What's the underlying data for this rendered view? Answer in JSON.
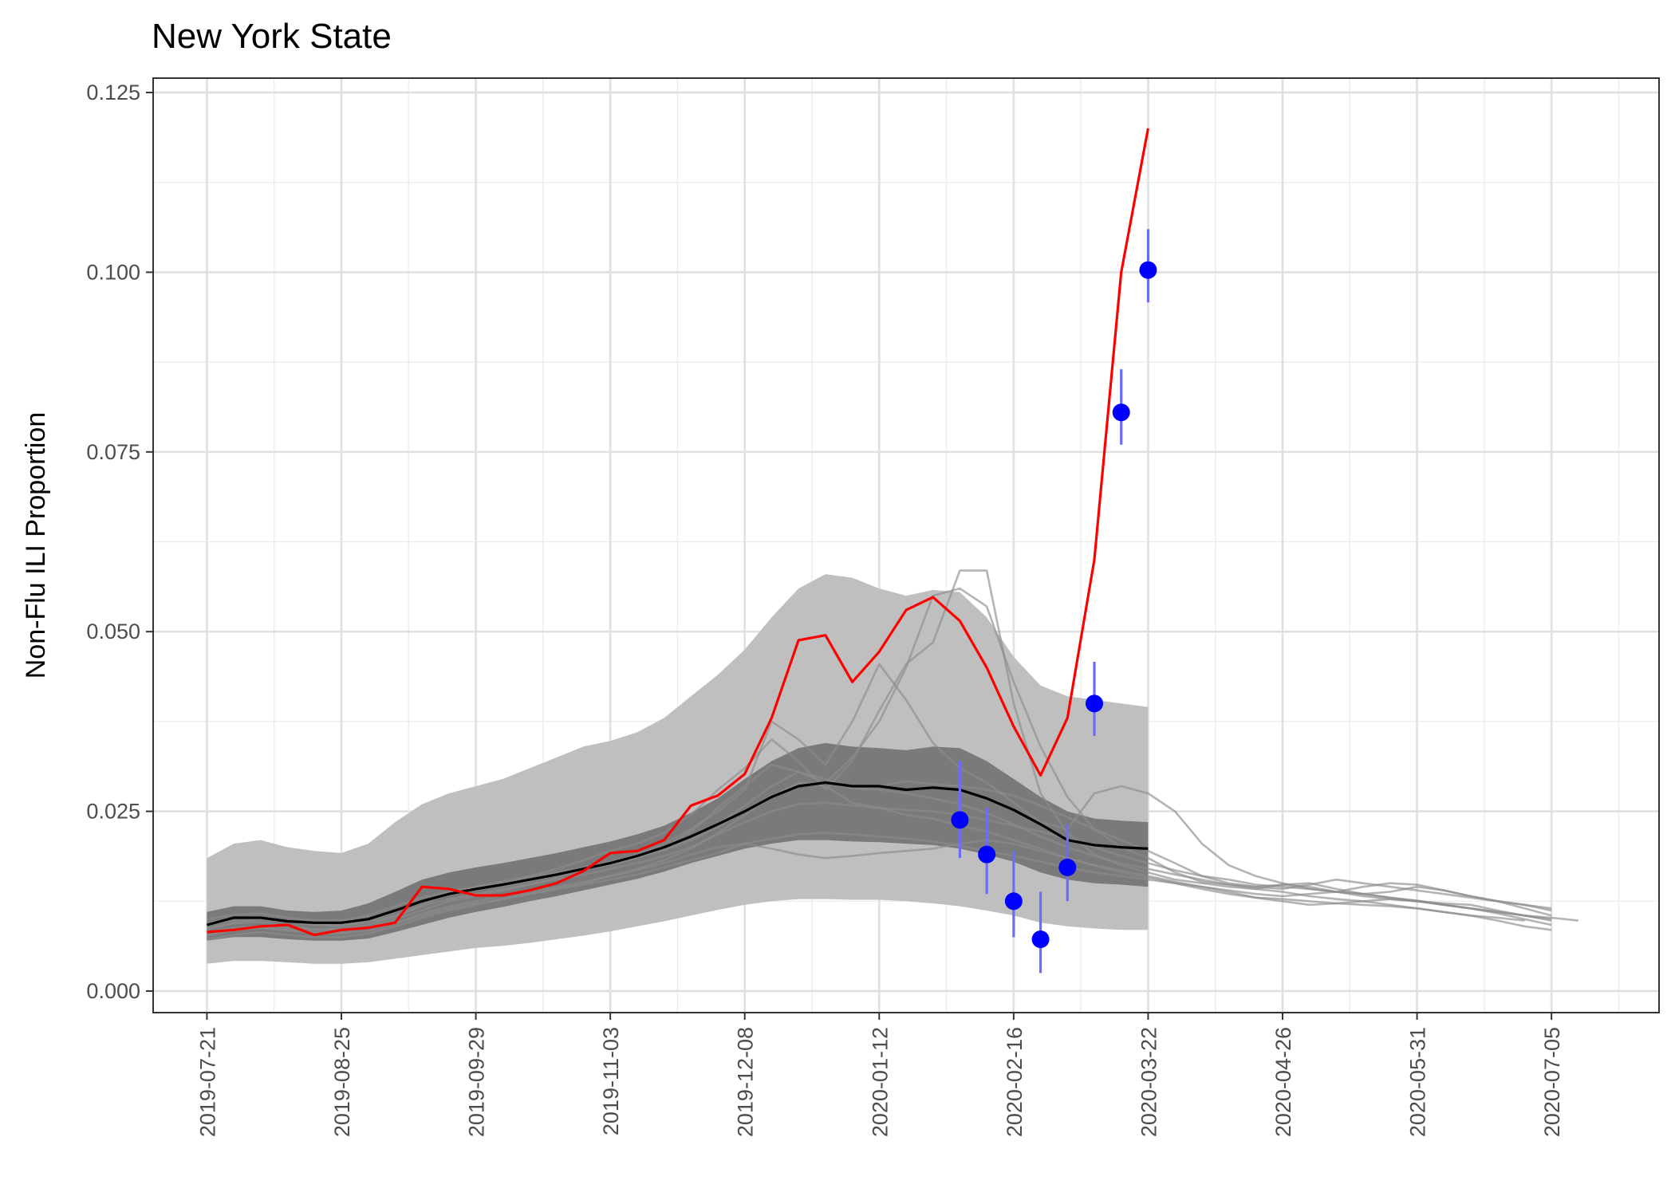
{
  "chart_data": {
    "type": "line",
    "title": "New York State",
    "xlabel": "",
    "ylabel": "Non-Flu ILI Proportion",
    "x_axis": "date",
    "xlim": [
      "2019-07-07",
      "2020-08-02"
    ],
    "ylim": [
      -0.003,
      0.127
    ],
    "x_ticks": [
      "2019-07-21",
      "2019-08-25",
      "2019-09-29",
      "2019-11-03",
      "2019-12-08",
      "2020-01-12",
      "2020-02-16",
      "2020-03-22",
      "2020-04-26",
      "2020-05-31",
      "2020-07-05"
    ],
    "y_ticks": [
      "0.000",
      "0.025",
      "0.050",
      "0.075",
      "0.100",
      "0.125"
    ],
    "grid": true,
    "colors": {
      "observed": "#ff0000",
      "mean": "#000000",
      "points": "#0000ff",
      "error_bars": "#6b6bff",
      "outer_band": "#bfbfbf",
      "inner_band": "#7a7a7a",
      "past_seasons": "#8c8c8c"
    },
    "outer_band": {
      "x": [
        "2019-07-21",
        "2019-07-28",
        "2019-08-04",
        "2019-08-11",
        "2019-08-18",
        "2019-08-25",
        "2019-09-01",
        "2019-09-08",
        "2019-09-15",
        "2019-09-22",
        "2019-09-29",
        "2019-10-06",
        "2019-10-13",
        "2019-10-20",
        "2019-10-27",
        "2019-11-03",
        "2019-11-10",
        "2019-11-17",
        "2019-11-24",
        "2019-12-01",
        "2019-12-08",
        "2019-12-15",
        "2019-12-22",
        "2019-12-29",
        "2020-01-05",
        "2020-01-12",
        "2020-01-19",
        "2020-01-26",
        "2020-02-02",
        "2020-02-09",
        "2020-02-16",
        "2020-02-23",
        "2020-03-01",
        "2020-03-08",
        "2020-03-15",
        "2020-03-22"
      ],
      "upper": [
        0.0185,
        0.0205,
        0.021,
        0.02,
        0.0195,
        0.0192,
        0.0205,
        0.0235,
        0.026,
        0.0275,
        0.0285,
        0.0295,
        0.031,
        0.0325,
        0.034,
        0.0348,
        0.036,
        0.038,
        0.041,
        0.044,
        0.0475,
        0.052,
        0.056,
        0.058,
        0.0575,
        0.056,
        0.055,
        0.0558,
        0.0555,
        0.052,
        0.0465,
        0.0425,
        0.041,
        0.0405,
        0.04,
        0.0395
      ],
      "lower": [
        0.0038,
        0.0042,
        0.0042,
        0.004,
        0.0038,
        0.0038,
        0.004,
        0.0045,
        0.005,
        0.0055,
        0.006,
        0.0063,
        0.0067,
        0.0072,
        0.0077,
        0.0083,
        0.009,
        0.0097,
        0.0105,
        0.0113,
        0.012,
        0.0125,
        0.0128,
        0.0128,
        0.0127,
        0.0127,
        0.0125,
        0.0122,
        0.0118,
        0.0112,
        0.0105,
        0.0095,
        0.009,
        0.0087,
        0.0085,
        0.0085
      ]
    },
    "inner_band": {
      "x": [
        "2019-07-21",
        "2019-07-28",
        "2019-08-04",
        "2019-08-11",
        "2019-08-18",
        "2019-08-25",
        "2019-09-01",
        "2019-09-08",
        "2019-09-15",
        "2019-09-22",
        "2019-09-29",
        "2019-10-06",
        "2019-10-13",
        "2019-10-20",
        "2019-10-27",
        "2019-11-03",
        "2019-11-10",
        "2019-11-17",
        "2019-11-24",
        "2019-12-01",
        "2019-12-08",
        "2019-12-15",
        "2019-12-22",
        "2019-12-29",
        "2020-01-05",
        "2020-01-12",
        "2020-01-19",
        "2020-01-26",
        "2020-02-02",
        "2020-02-09",
        "2020-02-16",
        "2020-02-23",
        "2020-03-01",
        "2020-03-08",
        "2020-03-15",
        "2020-03-22"
      ],
      "upper": [
        0.011,
        0.0118,
        0.0118,
        0.0112,
        0.011,
        0.0112,
        0.0122,
        0.0138,
        0.0155,
        0.0165,
        0.0172,
        0.0178,
        0.0185,
        0.0192,
        0.02,
        0.0208,
        0.0218,
        0.023,
        0.0248,
        0.0268,
        0.0295,
        0.032,
        0.0338,
        0.0345,
        0.034,
        0.0338,
        0.0335,
        0.034,
        0.0338,
        0.032,
        0.0295,
        0.027,
        0.025,
        0.024,
        0.0237,
        0.0235
      ],
      "lower": [
        0.007,
        0.0075,
        0.0075,
        0.0072,
        0.007,
        0.007,
        0.0073,
        0.0082,
        0.0092,
        0.0102,
        0.011,
        0.0117,
        0.0125,
        0.0132,
        0.014,
        0.0148,
        0.0156,
        0.0166,
        0.0178,
        0.0188,
        0.0198,
        0.0205,
        0.021,
        0.021,
        0.0208,
        0.0207,
        0.0205,
        0.0203,
        0.0198,
        0.019,
        0.018,
        0.0165,
        0.0155,
        0.015,
        0.0148,
        0.0145
      ]
    },
    "mean_line": {
      "x": [
        "2019-07-21",
        "2019-07-28",
        "2019-08-04",
        "2019-08-11",
        "2019-08-18",
        "2019-08-25",
        "2019-09-01",
        "2019-09-08",
        "2019-09-15",
        "2019-09-22",
        "2019-09-29",
        "2019-10-06",
        "2019-10-13",
        "2019-10-20",
        "2019-10-27",
        "2019-11-03",
        "2019-11-10",
        "2019-11-17",
        "2019-11-24",
        "2019-12-01",
        "2019-12-08",
        "2019-12-15",
        "2019-12-22",
        "2019-12-29",
        "2020-01-05",
        "2020-01-12",
        "2020-01-19",
        "2020-01-26",
        "2020-02-02",
        "2020-02-09",
        "2020-02-16",
        "2020-02-23",
        "2020-03-01",
        "2020-03-08",
        "2020-03-15",
        "2020-03-22"
      ],
      "y": [
        0.0092,
        0.0102,
        0.0102,
        0.0097,
        0.0095,
        0.0095,
        0.01,
        0.0112,
        0.0125,
        0.0135,
        0.0142,
        0.0148,
        0.0155,
        0.0162,
        0.017,
        0.0178,
        0.0188,
        0.02,
        0.0215,
        0.0232,
        0.025,
        0.027,
        0.0285,
        0.029,
        0.0285,
        0.0285,
        0.028,
        0.0283,
        0.028,
        0.0268,
        0.0252,
        0.0232,
        0.021,
        0.0203,
        0.02,
        0.0198
      ]
    },
    "observed_line": {
      "x": [
        "2019-07-21",
        "2019-07-28",
        "2019-08-04",
        "2019-08-11",
        "2019-08-18",
        "2019-08-25",
        "2019-09-01",
        "2019-09-08",
        "2019-09-15",
        "2019-09-22",
        "2019-09-29",
        "2019-10-06",
        "2019-10-13",
        "2019-10-20",
        "2019-10-27",
        "2019-11-03",
        "2019-11-10",
        "2019-11-17",
        "2019-11-24",
        "2019-12-01",
        "2019-12-08",
        "2019-12-15",
        "2019-12-22",
        "2019-12-29",
        "2020-01-05",
        "2020-01-12",
        "2020-01-19",
        "2020-01-26",
        "2020-02-02",
        "2020-02-09",
        "2020-02-16",
        "2020-02-23",
        "2020-03-01",
        "2020-03-08",
        "2020-03-15",
        "2020-03-22"
      ],
      "y": [
        0.0082,
        0.0085,
        0.009,
        0.0092,
        0.0078,
        0.0085,
        0.0088,
        0.0095,
        0.0145,
        0.0142,
        0.0133,
        0.0133,
        0.014,
        0.015,
        0.0167,
        0.0192,
        0.0195,
        0.021,
        0.0258,
        0.0272,
        0.0302,
        0.038,
        0.0488,
        0.0495,
        0.043,
        0.0472,
        0.053,
        0.0548,
        0.0515,
        0.045,
        0.0368,
        0.03,
        0.038,
        0.06,
        0.1,
        0.12
      ]
    },
    "points": {
      "x": [
        "2020-02-02",
        "2020-02-09",
        "2020-02-16",
        "2020-02-23",
        "2020-03-01",
        "2020-03-08",
        "2020-03-15",
        "2020-03-22"
      ],
      "y": [
        0.0238,
        0.019,
        0.0125,
        0.0072,
        0.0172,
        0.04,
        0.0805,
        0.1003
      ],
      "lower": [
        0.0185,
        0.0135,
        0.0075,
        0.0025,
        0.0125,
        0.0355,
        0.076,
        0.0958
      ],
      "upper": [
        0.032,
        0.0255,
        0.0195,
        0.0138,
        0.0232,
        0.0458,
        0.0865,
        0.106
      ]
    },
    "past_seasons": [
      {
        "x_start": "2019-07-21",
        "y": [
          0.0085,
          0.0095,
          0.01,
          0.0098,
          0.0092,
          0.009,
          0.0096,
          0.0105,
          0.012,
          0.0135,
          0.0145,
          0.0152,
          0.016,
          0.017,
          0.0182,
          0.0195,
          0.0205,
          0.022,
          0.0245,
          0.028,
          0.031,
          0.035,
          0.032,
          0.028,
          0.032,
          0.039,
          0.0455,
          0.0485,
          0.0585,
          0.0585,
          0.04,
          0.0275,
          0.022,
          0.019,
          0.0175,
          0.0165,
          0.0155,
          0.015,
          0.0145,
          0.0142,
          0.0148,
          0.015,
          0.0142,
          0.0135,
          0.0138,
          0.0145,
          0.014,
          0.0132,
          0.0125,
          0.012,
          0.0115
        ]
      },
      {
        "x_start": "2019-07-21",
        "y": [
          0.0095,
          0.0102,
          0.0104,
          0.0097,
          0.0092,
          0.0093,
          0.01,
          0.0112,
          0.0125,
          0.0138,
          0.0142,
          0.0146,
          0.0152,
          0.0162,
          0.017,
          0.0175,
          0.0185,
          0.02,
          0.0222,
          0.0255,
          0.0285,
          0.0315,
          0.0305,
          0.029,
          0.0325,
          0.0375,
          0.045,
          0.055,
          0.056,
          0.0535,
          0.043,
          0.034,
          0.027,
          0.0225,
          0.02,
          0.0185,
          0.0165,
          0.0152,
          0.0148,
          0.0145,
          0.0142,
          0.0148,
          0.0155,
          0.015,
          0.0145,
          0.014,
          0.0135,
          0.013,
          0.0125,
          0.012,
          0.0112
        ]
      },
      {
        "x_start": "2019-07-21",
        "y": [
          0.0078,
          0.0085,
          0.0088,
          0.0085,
          0.0082,
          0.0082,
          0.0088,
          0.01,
          0.0112,
          0.0125,
          0.0132,
          0.014,
          0.0148,
          0.0158,
          0.0168,
          0.0178,
          0.019,
          0.0205,
          0.0225,
          0.025,
          0.028,
          0.0375,
          0.035,
          0.0315,
          0.0375,
          0.0455,
          0.0405,
          0.0345,
          0.031,
          0.029,
          0.0262,
          0.0235,
          0.0225,
          0.0275,
          0.0285,
          0.0275,
          0.025,
          0.0205,
          0.0175,
          0.016,
          0.015,
          0.0142,
          0.0138,
          0.0145,
          0.015,
          0.0148,
          0.014,
          0.0132,
          0.0125,
          0.0115,
          0.0105
        ]
      },
      {
        "x_start": "2019-07-21",
        "y": [
          0.01,
          0.0106,
          0.0108,
          0.0102,
          0.0098,
          0.0098,
          0.0105,
          0.0118,
          0.013,
          0.0138,
          0.0145,
          0.015,
          0.0158,
          0.0165,
          0.0172,
          0.018,
          0.0188,
          0.0198,
          0.0212,
          0.0232,
          0.0258,
          0.0285,
          0.0305,
          0.0295,
          0.0282,
          0.0285,
          0.0292,
          0.0288,
          0.0285,
          0.028,
          0.0272,
          0.0258,
          0.0242,
          0.0225,
          0.021,
          0.0195,
          0.0178,
          0.016,
          0.015,
          0.0145,
          0.0148,
          0.0145,
          0.0138,
          0.0132,
          0.0128,
          0.0125,
          0.0122,
          0.012,
          0.0112,
          0.0105,
          0.0098
        ]
      },
      {
        "x_start": "2019-07-21",
        "y": [
          0.0088,
          0.0094,
          0.0096,
          0.009,
          0.0086,
          0.0087,
          0.0092,
          0.0104,
          0.0118,
          0.0128,
          0.0135,
          0.0142,
          0.0148,
          0.0155,
          0.0162,
          0.017,
          0.0178,
          0.0188,
          0.02,
          0.0218,
          0.0235,
          0.025,
          0.026,
          0.0262,
          0.0258,
          0.0255,
          0.0252,
          0.025,
          0.0245,
          0.0238,
          0.023,
          0.0222,
          0.0212,
          0.02,
          0.0188,
          0.0178,
          0.0168,
          0.016,
          0.0155,
          0.0148,
          0.0145,
          0.0142,
          0.0138,
          0.0135,
          0.013,
          0.0126,
          0.012,
          0.0115,
          0.0108,
          0.01,
          0.0092
        ]
      },
      {
        "x_start": "2019-07-21",
        "y": [
          0.0072,
          0.0078,
          0.0082,
          0.0078,
          0.0075,
          0.0075,
          0.008,
          0.009,
          0.0102,
          0.0112,
          0.012,
          0.0128,
          0.0135,
          0.0142,
          0.015,
          0.016,
          0.017,
          0.0182,
          0.0198,
          0.022,
          0.0245,
          0.027,
          0.029,
          0.0285,
          0.0262,
          0.0255,
          0.0245,
          0.024,
          0.023,
          0.0222,
          0.021,
          0.0198,
          0.0185,
          0.0175,
          0.0165,
          0.0158,
          0.015,
          0.0142,
          0.0135,
          0.013,
          0.0128,
          0.0125,
          0.0122,
          0.012,
          0.0118,
          0.0115,
          0.011,
          0.0105,
          0.0098,
          0.009,
          0.0085
        ]
      },
      {
        "x_start": "2019-07-21",
        "y": [
          0.0082,
          0.0088,
          0.009,
          0.0088,
          0.0085,
          0.0085,
          0.0088,
          0.0095,
          0.0105,
          0.0115,
          0.0122,
          0.0128,
          0.0135,
          0.0142,
          0.0148,
          0.0155,
          0.0162,
          0.0172,
          0.0182,
          0.0192,
          0.0205,
          0.0212,
          0.0218,
          0.022,
          0.0218,
          0.0215,
          0.0212,
          0.0208,
          0.0202,
          0.0195,
          0.0188,
          0.018,
          0.0172,
          0.0165,
          0.016,
          0.0155,
          0.015,
          0.0145,
          0.014,
          0.0135,
          0.0132,
          0.0135,
          0.0138,
          0.0135,
          0.013,
          0.0125,
          0.012,
          0.0115,
          0.011,
          0.0105,
          0.01
        ]
      },
      {
        "x_start": "2019-07-21",
        "y": [
          0.0078,
          0.0084,
          0.0088,
          0.0084,
          0.008,
          0.008,
          0.0084,
          0.0094,
          0.0108,
          0.0118,
          0.0125,
          0.0132,
          0.0138,
          0.0145,
          0.0152,
          0.016,
          0.0168,
          0.0178,
          0.019,
          0.02,
          0.0205,
          0.0198,
          0.019,
          0.0185,
          0.0188,
          0.0192,
          0.0195,
          0.0198,
          0.0205,
          0.021,
          0.0205,
          0.0195,
          0.0185,
          0.0175,
          0.0168,
          0.016,
          0.0152,
          0.0145,
          0.0138,
          0.013,
          0.0125,
          0.012,
          0.0122,
          0.0125,
          0.0128,
          0.0125,
          0.012,
          0.0115,
          0.011,
          0.0105,
          0.0102,
          0.0098
        ]
      },
      {
        "x_start": "2019-07-21",
        "y": [
          0.0092,
          0.0098,
          0.01,
          0.0096,
          0.0092,
          0.0092,
          0.0098,
          0.011,
          0.0125,
          0.0135,
          0.0142,
          0.0148,
          0.0155,
          0.0162,
          0.017,
          0.0178,
          0.0186,
          0.0196,
          0.021,
          0.0228,
          0.025,
          0.0272,
          0.0288,
          0.029,
          0.0282,
          0.028,
          0.0275,
          0.0268,
          0.026,
          0.0248,
          0.0232,
          0.0215,
          0.02,
          0.0188,
          0.0178,
          0.017,
          0.0162,
          0.0155,
          0.0148,
          0.0142,
          0.0138,
          0.0132,
          0.0128,
          0.0125,
          0.012,
          0.0115,
          0.011,
          0.0105,
          0.0102,
          0.0098
        ]
      }
    ]
  }
}
